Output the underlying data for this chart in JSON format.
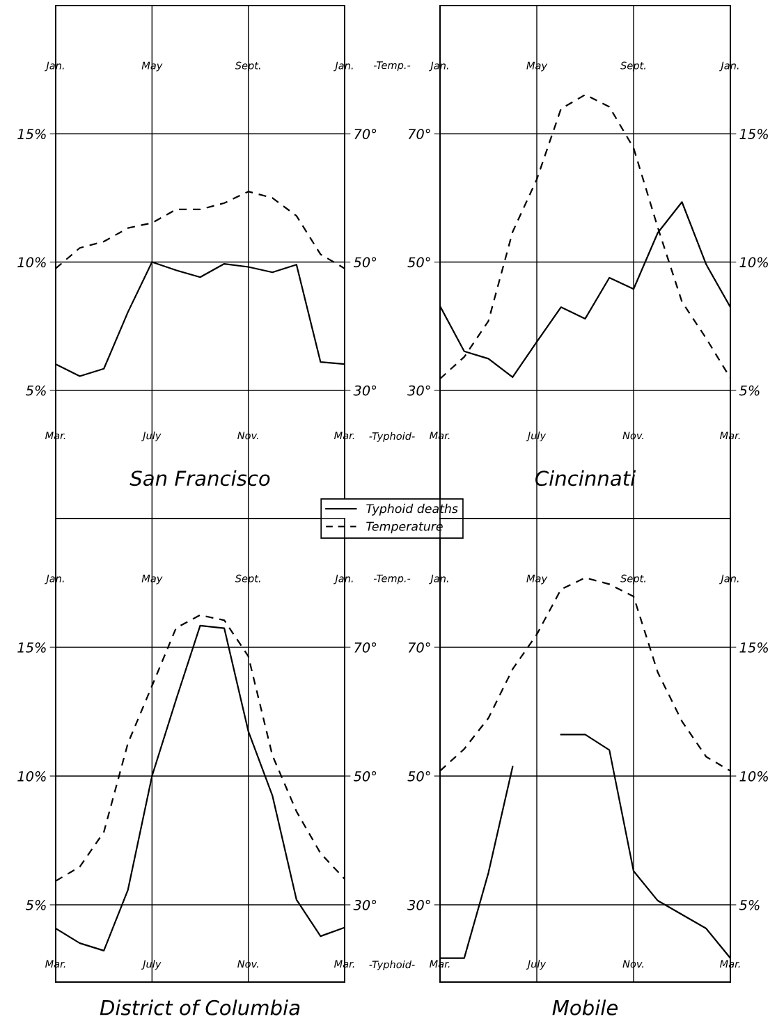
{
  "chart_data": [
    {
      "type": "line",
      "title": "San Francisco",
      "categories": [
        "Mar.",
        null,
        null,
        null,
        "July",
        null,
        null,
        null,
        "Nov.",
        null,
        null,
        null,
        "Mar."
      ],
      "annotations": [
        "Jan.",
        "May",
        "Sept.",
        "Jan."
      ],
      "xlabel": "-Typhoid-",
      "x2label": "-Temp.-",
      "ylim": [
        0,
        20
      ],
      "yticks": [
        {
          "value": 5,
          "label": "5%"
        },
        {
          "value": 10,
          "label": "10%"
        },
        {
          "value": 15,
          "label": "15%"
        }
      ],
      "y2lim": [
        10,
        90
      ],
      "y2ticks": [
        {
          "value": 30,
          "label": "30°"
        },
        {
          "value": 50,
          "label": "50°"
        },
        {
          "value": 70,
          "label": "70°"
        }
      ],
      "grid": true,
      "legend": "bottom right",
      "series": [
        {
          "name": "Typhoid deaths",
          "color": "#000000",
          "line_style": "solid",
          "values": [
            6.02,
            5.55,
            5.84,
            8.05,
            10.0,
            9.68,
            9.41,
            9.93,
            9.81,
            9.6,
            9.9,
            6.1,
            6.02
          ]
        },
        {
          "name": "Temperature",
          "color": "#000000",
          "line_style": "dashed",
          "axis": "y2",
          "values": [
            49.0,
            52.2,
            53.2,
            55.3,
            56.1,
            58.2,
            58.2,
            59.2,
            61.0,
            60.0,
            57.2,
            51.2,
            49.0
          ]
        }
      ]
    },
    {
      "type": "line",
      "title": "Cincinnati",
      "categories": [
        "Mar.",
        null,
        null,
        null,
        "July",
        null,
        null,
        null,
        "Nov.",
        null,
        null,
        null,
        "Mar."
      ],
      "annotations": [
        "Jan.",
        "May",
        "Sept.",
        "Jan."
      ],
      "ylim": [
        10,
        90
      ],
      "yticks": [
        {
          "value": 30,
          "label": "30°"
        },
        {
          "value": 50,
          "label": "50°"
        },
        {
          "value": 70,
          "label": "70°"
        }
      ],
      "y2lim": [
        0,
        20
      ],
      "y2ticks": [
        {
          "value": 5,
          "label": "5%"
        },
        {
          "value": 10,
          "label": "10%"
        },
        {
          "value": 15,
          "label": "15%"
        }
      ],
      "grid": true,
      "series": [
        {
          "color": "#000000",
          "line_style": "solid",
          "axis": "y2",
          "values": [
            8.28,
            6.52,
            6.23,
            5.51,
            6.89,
            8.24,
            7.79,
            9.39,
            8.95,
            11.14,
            12.34,
            9.91,
            8.24
          ]
        },
        {
          "color": "#000000",
          "line_style": "dashed",
          "values": [
            31.8,
            35.2,
            40.8,
            54.7,
            62.9,
            73.9,
            76.1,
            74.2,
            67.8,
            55.4,
            43.8,
            38.1,
            31.9
          ]
        }
      ]
    },
    {
      "type": "line",
      "title": "District of Columbia",
      "categories": [
        "Mar.",
        null,
        null,
        null,
        "July",
        null,
        null,
        null,
        "Nov.",
        null,
        null,
        null,
        "Mar."
      ],
      "annotations": [
        "Jan.",
        "May",
        "Sept.",
        "Jan."
      ],
      "xlabel": "-Typhoid-",
      "x2label": "-Temp.-",
      "ylim": [
        2,
        20
      ],
      "yticks": [
        {
          "value": 5,
          "label": "5%"
        },
        {
          "value": 10,
          "label": "10%"
        },
        {
          "value": 15,
          "label": "15%"
        }
      ],
      "y2lim": [
        18,
        90
      ],
      "y2ticks": [
        {
          "value": 30,
          "label": "30°"
        },
        {
          "value": 50,
          "label": "50°"
        },
        {
          "value": 70,
          "label": "70°"
        }
      ],
      "grid": true,
      "series": [
        {
          "color": "#000000",
          "line_style": "solid",
          "values": [
            4.08,
            3.51,
            3.22,
            5.58,
            10.0,
            12.97,
            15.84,
            15.74,
            11.74,
            9.24,
            5.2,
            3.78,
            4.12
          ]
        },
        {
          "color": "#000000",
          "line_style": "dashed",
          "axis": "y2",
          "values": [
            33.7,
            35.9,
            41.3,
            55.1,
            64.0,
            73.0,
            75.0,
            74.2,
            68.6,
            53.2,
            44.5,
            38.0,
            34.0
          ]
        }
      ]
    },
    {
      "type": "line",
      "title": "Mobile",
      "categories": [
        "Mar.",
        null,
        null,
        null,
        "July",
        null,
        null,
        null,
        "Nov.",
        null,
        null,
        null,
        "Mar."
      ],
      "annotations": [
        "Jan.",
        "May",
        "Sept.",
        "Jan."
      ],
      "ylim": [
        18,
        90
      ],
      "yticks": [
        {
          "value": 30,
          "label": "30°"
        },
        {
          "value": 50,
          "label": "50°"
        },
        {
          "value": 70,
          "label": "70°"
        }
      ],
      "y2lim": [
        2,
        20
      ],
      "y2ticks": [
        {
          "value": 5,
          "label": "5%"
        },
        {
          "value": 10,
          "label": "10%"
        },
        {
          "value": 15,
          "label": "15%"
        }
      ],
      "grid": true,
      "series": [
        {
          "color": "#000000",
          "line_style": "solid",
          "axis": "y2",
          "values": [
            2.93,
            2.93,
            6.24,
            10.36,
            null,
            11.61,
            11.61,
            11.01,
            6.31,
            5.16,
            4.62,
            4.08,
            2.93
          ]
        },
        {
          "color": "#000000",
          "line_style": "dashed",
          "values": [
            50.8,
            54.2,
            59.0,
            66.6,
            72.0,
            79.0,
            80.8,
            79.8,
            77.9,
            66.1,
            58.5,
            53.0,
            50.8
          ]
        }
      ]
    }
  ]
}
